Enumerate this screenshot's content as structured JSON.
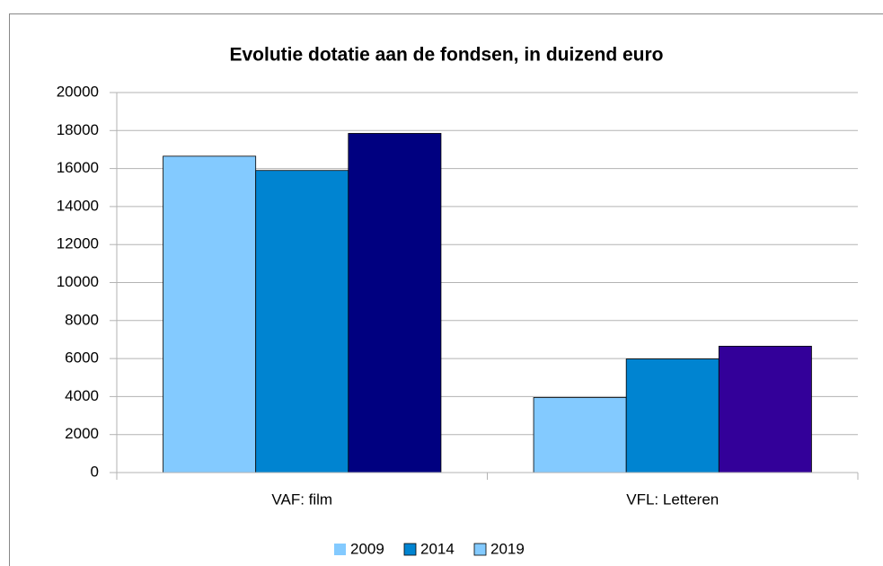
{
  "chart_data": {
    "type": "bar",
    "title": "Evolutie dotatie aan de fondsen, in duizend euro",
    "categories": [
      "VAF: film",
      "VFL: Letteren"
    ],
    "series": [
      {
        "name": "2009",
        "color": "#83caff",
        "values": [
          16650,
          3950
        ]
      },
      {
        "name": "2014",
        "color": "#0084d1",
        "values": [
          15900,
          5980
        ]
      },
      {
        "name": "2019",
        "color": "#83caff",
        "point_colors": [
          "#000080",
          "#330099"
        ],
        "values": [
          17850,
          6650
        ]
      }
    ],
    "ylim": [
      0,
      20000
    ],
    "yticks": [
      0,
      2000,
      4000,
      6000,
      8000,
      10000,
      12000,
      14000,
      16000,
      18000,
      20000
    ],
    "grid": true,
    "legend": "bottom"
  }
}
